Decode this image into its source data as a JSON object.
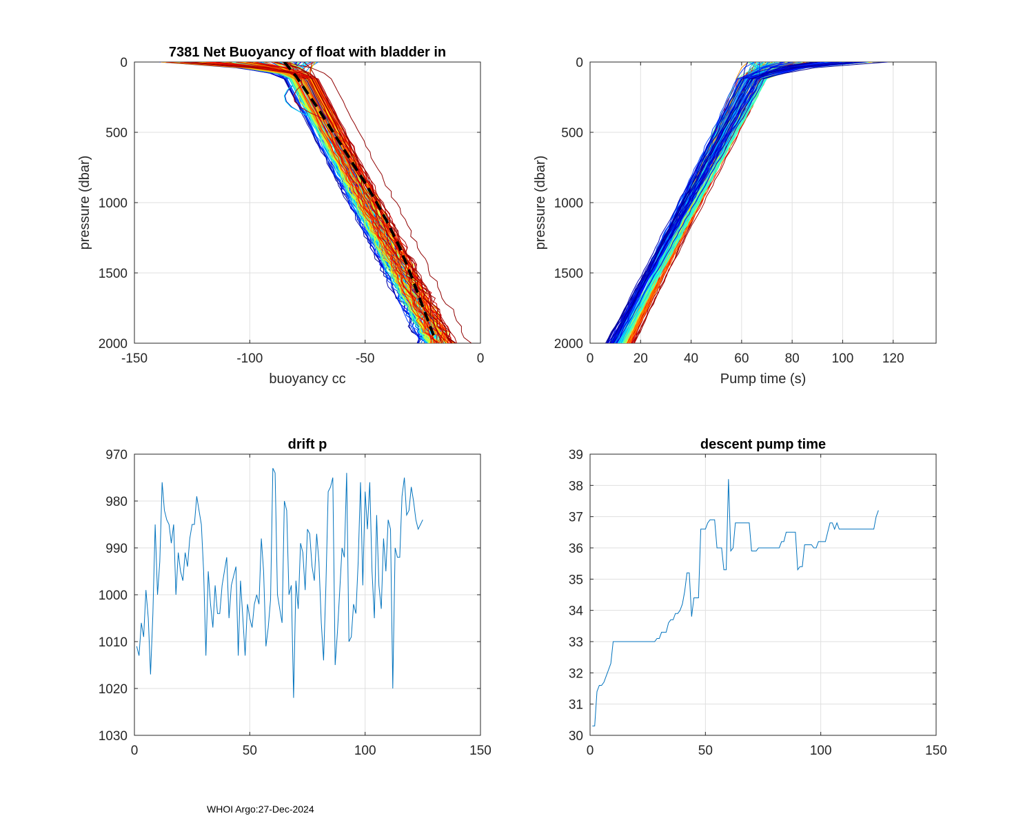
{
  "footer": "WHOI Argo:27-Dec-2024",
  "colors": {
    "series": "#0072bd",
    "axis": "#262626",
    "grid": "#dfdfdf",
    "dashed": "#000000"
  },
  "chart_data": [
    {
      "type": "line",
      "title": "7381 Net Buoyancy of float with bladder in",
      "xlabel": "buoyancy cc",
      "ylabel": "pressure (dbar)",
      "xlim": [
        -150,
        0
      ],
      "ylim": [
        0,
        2000
      ],
      "y_reversed": true,
      "xticks": [
        "-150",
        "-100",
        "-50",
        "0"
      ],
      "yticks": [
        "0",
        "500",
        "1000",
        "1500",
        "2000"
      ],
      "profile_count": 125,
      "profile_colormap": [
        "#00008f",
        "#0000ff",
        "#0080ff",
        "#00ffff",
        "#80ff80",
        "#ffff00",
        "#ff8000",
        "#ff0000",
        "#800000"
      ],
      "reference_profile": {
        "style": "dashed",
        "color": "#000000",
        "x": [
          -85,
          -80,
          -75,
          -70,
          -65,
          -60,
          -55,
          -50,
          -45,
          -40,
          -35,
          -30,
          -25,
          -20
        ],
        "y": [
          0,
          100,
          220,
          340,
          470,
          600,
          730,
          860,
          1000,
          1150,
          1320,
          1520,
          1740,
          1960
        ]
      }
    },
    {
      "type": "line",
      "title": "",
      "xlabel": "Pump time (s)",
      "ylabel": "pressure (dbar)",
      "xlim": [
        0,
        137
      ],
      "ylim": [
        0,
        2000
      ],
      "y_reversed": true,
      "xticks": [
        "0",
        "20",
        "40",
        "60",
        "80",
        "100",
        "120"
      ],
      "yticks": [
        "0",
        "500",
        "1000",
        "1500",
        "2000"
      ],
      "profile_count": 125
    },
    {
      "type": "line",
      "title": "drift p",
      "xlabel": "",
      "ylabel": "",
      "xlim": [
        0,
        150
      ],
      "ylim": [
        970,
        1030
      ],
      "y_reversed": true,
      "xticks": [
        "0",
        "50",
        "100",
        "150"
      ],
      "yticks": [
        "970",
        "980",
        "990",
        "1000",
        "1010",
        "1020",
        "1030"
      ],
      "x": [
        1,
        2,
        3,
        4,
        5,
        6,
        7,
        8,
        9,
        10,
        11,
        12,
        13,
        14,
        15,
        16,
        17,
        18,
        19,
        20,
        21,
        22,
        23,
        24,
        25,
        26,
        27,
        28,
        29,
        30,
        31,
        32,
        33,
        34,
        35,
        36,
        37,
        38,
        39,
        40,
        41,
        42,
        43,
        44,
        45,
        46,
        47,
        48,
        49,
        50,
        51,
        52,
        53,
        54,
        55,
        56,
        57,
        58,
        59,
        60,
        61,
        62,
        63,
        64,
        65,
        66,
        67,
        68,
        69,
        70,
        71,
        72,
        73,
        74,
        75,
        76,
        77,
        78,
        79,
        80,
        81,
        82,
        83,
        84,
        85,
        86,
        87,
        88,
        89,
        90,
        91,
        92,
        93,
        94,
        95,
        96,
        97,
        98,
        99,
        100,
        101,
        102,
        103,
        104,
        105,
        106,
        107,
        108,
        109,
        110,
        111,
        112,
        113,
        114,
        115,
        116,
        117,
        118,
        119,
        120,
        121,
        122,
        123,
        124,
        125
      ],
      "values": [
        1011,
        1013,
        1006,
        1009,
        999,
        1005,
        1017,
        1004,
        985,
        1000,
        993,
        976,
        982,
        984,
        985,
        989,
        985,
        1000,
        991,
        995,
        997,
        991,
        994,
        988,
        985,
        985,
        979,
        982,
        985,
        995,
        1013,
        995,
        1002,
        1007,
        998,
        1004,
        1004,
        998,
        995,
        992,
        1005,
        998,
        996,
        994,
        1013,
        997,
        1005,
        1013,
        1002,
        1005,
        1007,
        1002,
        1000,
        1002,
        988,
        995,
        1011,
        1007,
        1001,
        973,
        974,
        1000,
        1003,
        1006,
        980,
        982,
        1000,
        998,
        1022,
        997,
        1003,
        989,
        991,
        999,
        986,
        987,
        994,
        997,
        987,
        993,
        1006,
        1014,
        998,
        978,
        977,
        975,
        1015,
        1008,
        999,
        990,
        992,
        974,
        1010,
        1009,
        1002,
        1004,
        993,
        976,
        998,
        978,
        986,
        976,
        995,
        1005,
        983,
        998,
        1003,
        988,
        995,
        984,
        986,
        1020,
        990,
        992,
        992,
        979,
        975,
        983,
        982,
        977,
        980,
        984,
        986,
        985,
        984
      ],
      "series_color": "#0072bd"
    },
    {
      "type": "line",
      "title": "descent pump time",
      "xlabel": "",
      "ylabel": "",
      "xlim": [
        0,
        150
      ],
      "ylim": [
        30,
        39
      ],
      "xticks": [
        "0",
        "50",
        "100",
        "150"
      ],
      "yticks": [
        "30",
        "31",
        "32",
        "33",
        "34",
        "35",
        "36",
        "37",
        "38",
        "39"
      ],
      "x": [
        1,
        2,
        3,
        4,
        5,
        6,
        7,
        8,
        9,
        10,
        11,
        12,
        13,
        14,
        15,
        16,
        17,
        18,
        19,
        20,
        21,
        22,
        23,
        24,
        25,
        26,
        27,
        28,
        29,
        30,
        31,
        32,
        33,
        34,
        35,
        36,
        37,
        38,
        39,
        40,
        41,
        42,
        43,
        44,
        45,
        46,
        47,
        48,
        49,
        50,
        51,
        52,
        53,
        54,
        55,
        56,
        57,
        58,
        59,
        60,
        61,
        62,
        63,
        64,
        65,
        66,
        67,
        68,
        69,
        70,
        71,
        72,
        73,
        74,
        75,
        76,
        77,
        78,
        79,
        80,
        81,
        82,
        83,
        84,
        85,
        86,
        87,
        88,
        89,
        90,
        91,
        92,
        93,
        94,
        95,
        96,
        97,
        98,
        99,
        100,
        101,
        102,
        103,
        104,
        105,
        106,
        107,
        108,
        109,
        110,
        111,
        112,
        113,
        114,
        115,
        116,
        117,
        118,
        119,
        120,
        121,
        122,
        123,
        124,
        125
      ],
      "values": [
        30.3,
        30.3,
        31.4,
        31.6,
        31.6,
        31.7,
        31.9,
        32.1,
        32.3,
        33,
        33,
        33,
        33,
        33,
        33,
        33,
        33,
        33,
        33,
        33,
        33,
        33,
        33,
        33,
        33,
        33,
        33,
        33,
        33.1,
        33.1,
        33.3,
        33.3,
        33.3,
        33.6,
        33.7,
        33.7,
        33.9,
        33.9,
        34,
        34.2,
        34.6,
        35.2,
        35.2,
        33.8,
        34.4,
        34.4,
        34.4,
        36.6,
        36.6,
        36.6,
        36.8,
        36.9,
        36.9,
        36.9,
        36,
        36,
        36,
        35.3,
        35.3,
        38.2,
        35.9,
        36,
        36.8,
        36.8,
        36.8,
        36.8,
        36.8,
        36.8,
        36.8,
        35.9,
        35.9,
        35.9,
        36,
        36,
        36,
        36,
        36,
        36,
        36,
        36,
        36,
        36,
        36.2,
        36.2,
        36.5,
        36.5,
        36.5,
        36.5,
        36.5,
        35.3,
        35.4,
        35.4,
        36.1,
        36.1,
        36.1,
        36.1,
        36,
        36,
        36.2,
        36.2,
        36.2,
        36.2,
        36.5,
        36.8,
        36.8,
        36.6,
        36.8,
        36.6,
        36.6,
        36.6,
        36.6,
        36.6,
        36.6,
        36.6,
        36.6,
        36.6,
        36.6,
        36.6,
        36.6,
        36.6,
        36.6,
        36.6,
        36.6,
        37,
        37.2
      ],
      "series_color": "#0072bd"
    }
  ]
}
